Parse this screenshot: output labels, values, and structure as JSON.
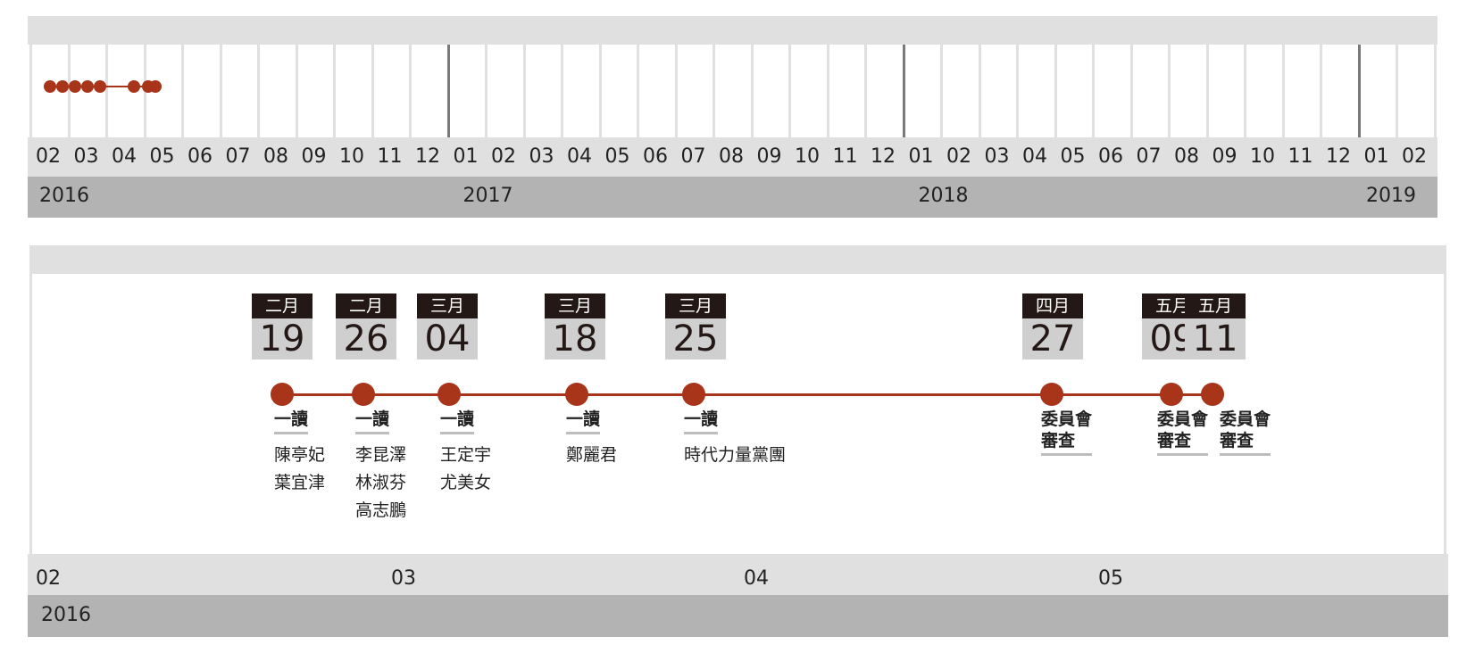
{
  "overview": {
    "months": [
      "02",
      "03",
      "04",
      "05",
      "06",
      "07",
      "08",
      "09",
      "10",
      "11",
      "12",
      "01",
      "02",
      "03",
      "04",
      "05",
      "06",
      "07",
      "08",
      "09",
      "10",
      "11",
      "12",
      "01",
      "02",
      "03",
      "04",
      "05",
      "06",
      "07",
      "08",
      "09",
      "10",
      "11",
      "12",
      "01",
      "02"
    ],
    "years": [
      "2016",
      "2017",
      "2018",
      "2019"
    ]
  },
  "detail": {
    "month_labels": [
      "02",
      "03",
      "04",
      "05"
    ],
    "year_label": "2016",
    "events": [
      {
        "cal_month": "二月",
        "cal_day": "19",
        "stage": "一讀",
        "names": [
          "陳亭妃",
          "葉宜津"
        ]
      },
      {
        "cal_month": "二月",
        "cal_day": "26",
        "stage": "一讀",
        "names": [
          "李昆澤",
          "林淑芬",
          "高志鵬"
        ]
      },
      {
        "cal_month": "三月",
        "cal_day": "04",
        "stage": "一讀",
        "names": [
          "王定宇",
          "尤美女"
        ]
      },
      {
        "cal_month": "三月",
        "cal_day": "18",
        "stage": "一讀",
        "names": [
          "鄭麗君"
        ]
      },
      {
        "cal_month": "三月",
        "cal_day": "25",
        "stage": "一讀",
        "names": [
          "時代力量黨團"
        ]
      },
      {
        "cal_month": "四月",
        "cal_day": "27",
        "stage": "委員會審查",
        "stage_lines": [
          "委員會",
          "審查"
        ],
        "names": []
      },
      {
        "cal_month": "五月",
        "cal_day": "09",
        "stage": "委員會審查",
        "stage_lines": [
          "委員會",
          "審查"
        ],
        "names": []
      },
      {
        "cal_month": "五月",
        "cal_day": "11",
        "stage": "委員會審查",
        "stage_lines": [
          "委員會",
          "審查"
        ],
        "names": []
      }
    ]
  },
  "colors": {
    "accent": "#a8341a",
    "calendar_header": "#231815",
    "calendar_body": "#cfcfcf",
    "band_light": "#e0e0e0",
    "band_dark": "#b3b3b3"
  }
}
